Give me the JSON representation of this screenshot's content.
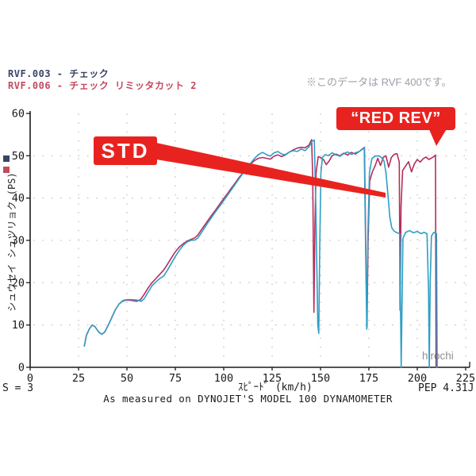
{
  "header": {
    "file_line_1": "RVF.003 - チェック",
    "file_line_2": "RVF.006 - チェック  リミッタカット 2",
    "note": "※このデータは RVF 400です。"
  },
  "annotations": {
    "std_label": "STD",
    "red_rev_label": "“RED REV”",
    "watermark": "hirochi",
    "smoothing": "S = 3",
    "version": "PEP 4.31J",
    "footer": "As measured on DYNOJET'S MODEL 100 DYNAMOMETER"
  },
  "colors": {
    "accent_red": "#e8231f",
    "std_curve": "#2f9ec4",
    "redrev_curve": "#b52d5e",
    "axis": "#1a1a1a",
    "grid": "#c4bcb4",
    "file1_text": "#3a4464",
    "file2_text": "#c5495e",
    "note_text": "#9aa0a8",
    "watermark_text": "#8f8f8f"
  },
  "chart_data": {
    "type": "line",
    "title": "",
    "xlabel": "ｽﾋﾟｰﾄﾞ (km/h)",
    "ylabel": "シュウセイ シュツリョク (PS)",
    "xlim": [
      0,
      225
    ],
    "ylim": [
      0,
      60
    ],
    "x_ticks": [
      0,
      25,
      50,
      75,
      100,
      125,
      150,
      175,
      200,
      225
    ],
    "y_ticks": [
      0,
      10,
      20,
      30,
      40,
      50,
      60
    ],
    "grid": "dotted",
    "legend_position": "none",
    "series": [
      {
        "name": "RVF.006 チェック リミッタカット 2 (RED REV)",
        "color": "#b52d5e",
        "points": [
          [
            28,
            5
          ],
          [
            29,
            7.5
          ],
          [
            30.5,
            9
          ],
          [
            32,
            10
          ],
          [
            33.5,
            9.6
          ],
          [
            35.5,
            8.3
          ],
          [
            37,
            7.8
          ],
          [
            38.5,
            8.3
          ],
          [
            40,
            9.6
          ],
          [
            42,
            11.6
          ],
          [
            44,
            13.6
          ],
          [
            46,
            15
          ],
          [
            48,
            15.7
          ],
          [
            50,
            15.9
          ],
          [
            52.5,
            15.8
          ],
          [
            55,
            15.6
          ],
          [
            57,
            16
          ],
          [
            59,
            17.3
          ],
          [
            61,
            18.8
          ],
          [
            63,
            20
          ],
          [
            65,
            21
          ],
          [
            67,
            22
          ],
          [
            69,
            23
          ],
          [
            71,
            24.4
          ],
          [
            73,
            25.9
          ],
          [
            75,
            27.3
          ],
          [
            77,
            28.4
          ],
          [
            79,
            29.2
          ],
          [
            81,
            29.8
          ],
          [
            83,
            30.2
          ],
          [
            85,
            30.6
          ],
          [
            86.5,
            31.2
          ],
          [
            88,
            32.2
          ],
          [
            90,
            33.5
          ],
          [
            92,
            34.8
          ],
          [
            94,
            36.1
          ],
          [
            96,
            37.3
          ],
          [
            98,
            38.6
          ],
          [
            100,
            39.9
          ],
          [
            102,
            41.1
          ],
          [
            104,
            42.4
          ],
          [
            106,
            43.6
          ],
          [
            108,
            44.9
          ],
          [
            110,
            46
          ],
          [
            112,
            47.1
          ],
          [
            114,
            48.1
          ],
          [
            116,
            48.9
          ],
          [
            118,
            49.4
          ],
          [
            120,
            49.6
          ],
          [
            122,
            49.4
          ],
          [
            124,
            49.2
          ],
          [
            126,
            49.9
          ],
          [
            128,
            50.2
          ],
          [
            130,
            49.8
          ],
          [
            132,
            50.3
          ],
          [
            134,
            50.9
          ],
          [
            136,
            51.4
          ],
          [
            138,
            51.8
          ],
          [
            140,
            52
          ],
          [
            142,
            51.9
          ],
          [
            144,
            52.5
          ],
          [
            145.4,
            53.8
          ],
          [
            146,
            45
          ],
          [
            146.6,
            13
          ],
          [
            147.1,
            33
          ],
          [
            147.7,
            46
          ],
          [
            148.8,
            49.8
          ],
          [
            150,
            49.6
          ],
          [
            151.5,
            49.1
          ],
          [
            153,
            47.9
          ],
          [
            154.5,
            48.8
          ],
          [
            156,
            50
          ],
          [
            158,
            50.4
          ],
          [
            160,
            50
          ],
          [
            162,
            50.6
          ],
          [
            164,
            50.2
          ],
          [
            166,
            50.8
          ],
          [
            168,
            50.4
          ],
          [
            170,
            51
          ],
          [
            171.6,
            51.6
          ],
          [
            172.7,
            52
          ],
          [
            173.4,
            28
          ],
          [
            174,
            9.5
          ],
          [
            174.6,
            30
          ],
          [
            175.4,
            44
          ],
          [
            176.8,
            46.2
          ],
          [
            178.2,
            47.6
          ],
          [
            179.6,
            49.4
          ],
          [
            181,
            47.7
          ],
          [
            182.4,
            49.6
          ],
          [
            183.8,
            50
          ],
          [
            185.2,
            47.3
          ],
          [
            186.6,
            49.6
          ],
          [
            188,
            50.3
          ],
          [
            189.5,
            50.5
          ],
          [
            190.7,
            48.5
          ],
          [
            191.1,
            13.5
          ],
          [
            191.6,
            38
          ],
          [
            192.4,
            46.5
          ],
          [
            194,
            47.6
          ],
          [
            195.5,
            48.6
          ],
          [
            197,
            46.2
          ],
          [
            198.5,
            48.1
          ],
          [
            200,
            49.1
          ],
          [
            201.5,
            48.5
          ],
          [
            203,
            49.3
          ],
          [
            204.5,
            49.7
          ],
          [
            206,
            49.1
          ],
          [
            207.5,
            49.5
          ],
          [
            208.8,
            49.9
          ],
          [
            209.4,
            50.2
          ],
          [
            209.7,
            0
          ]
        ]
      },
      {
        "name": "RVF.003 チェック (STD)",
        "color": "#2f9ec4",
        "points": [
          [
            28,
            5
          ],
          [
            29,
            7.5
          ],
          [
            30.5,
            9
          ],
          [
            32,
            10
          ],
          [
            33.5,
            9.6
          ],
          [
            35.5,
            8.3
          ],
          [
            37,
            7.8
          ],
          [
            38.5,
            8.3
          ],
          [
            40,
            9.6
          ],
          [
            42,
            11.6
          ],
          [
            44,
            13.6
          ],
          [
            46,
            15
          ],
          [
            48,
            15.8
          ],
          [
            50,
            16
          ],
          [
            52.5,
            16
          ],
          [
            55,
            15.9
          ],
          [
            57.5,
            15.6
          ],
          [
            59,
            16.3
          ],
          [
            61,
            17.8
          ],
          [
            63,
            19.3
          ],
          [
            65,
            20.2
          ],
          [
            67,
            21
          ],
          [
            69,
            21.6
          ],
          [
            71,
            23
          ],
          [
            73,
            24.6
          ],
          [
            75,
            26.2
          ],
          [
            77,
            27.6
          ],
          [
            79,
            28.8
          ],
          [
            81,
            29.6
          ],
          [
            83,
            30
          ],
          [
            85,
            30.1
          ],
          [
            86.5,
            30.5
          ],
          [
            88,
            31.5
          ],
          [
            90,
            32.9
          ],
          [
            92,
            34.3
          ],
          [
            94,
            35.6
          ],
          [
            96,
            36.9
          ],
          [
            98,
            38.1
          ],
          [
            100,
            39.4
          ],
          [
            102,
            40.7
          ],
          [
            104,
            42
          ],
          [
            106,
            43.3
          ],
          [
            108,
            44.6
          ],
          [
            110,
            45.9
          ],
          [
            112,
            47.1
          ],
          [
            114,
            48.3
          ],
          [
            116,
            49.4
          ],
          [
            118,
            50.3
          ],
          [
            120,
            50.8
          ],
          [
            122,
            50.3
          ],
          [
            124,
            49.9
          ],
          [
            126,
            50.7
          ],
          [
            128,
            51
          ],
          [
            130,
            50.4
          ],
          [
            132,
            50.2
          ],
          [
            134,
            50.9
          ],
          [
            136,
            51.2
          ],
          [
            138,
            51
          ],
          [
            140,
            51.6
          ],
          [
            142,
            51.2
          ],
          [
            144,
            52.1
          ],
          [
            145.6,
            53.4
          ],
          [
            146.8,
            53.7
          ],
          [
            147.6,
            38
          ],
          [
            148.6,
            10
          ],
          [
            149.1,
            8
          ],
          [
            149.6,
            28
          ],
          [
            150.2,
            46
          ],
          [
            151,
            49.6
          ],
          [
            152.5,
            50.3
          ],
          [
            154,
            50
          ],
          [
            156,
            50.7
          ],
          [
            158,
            50.2
          ],
          [
            160,
            49.9
          ],
          [
            162,
            50.5
          ],
          [
            164,
            50.9
          ],
          [
            166,
            50.3
          ],
          [
            168,
            50.7
          ],
          [
            170,
            51
          ],
          [
            171.6,
            51.5
          ],
          [
            172.6,
            51.9
          ],
          [
            173.3,
            28
          ],
          [
            173.9,
            9
          ],
          [
            174.5,
            32
          ],
          [
            175.3,
            46
          ],
          [
            176.5,
            49.3
          ],
          [
            178,
            49.9
          ],
          [
            180,
            50
          ],
          [
            181.5,
            49.6
          ],
          [
            182.8,
            48.8
          ],
          [
            183.8,
            46
          ],
          [
            184.8,
            41
          ],
          [
            185.8,
            35.5
          ],
          [
            186.8,
            33
          ],
          [
            188,
            32.2
          ],
          [
            189.5,
            31.8
          ],
          [
            191,
            31.6
          ],
          [
            191.4,
            12
          ],
          [
            191.7,
            0
          ],
          [
            192.1,
            14
          ],
          [
            192.6,
            30.5
          ],
          [
            194,
            31.9
          ],
          [
            196,
            32.3
          ],
          [
            198,
            31.8
          ],
          [
            200,
            32.1
          ],
          [
            202,
            31.6
          ],
          [
            203.5,
            31.9
          ],
          [
            205,
            31.6
          ],
          [
            205.8,
            18
          ],
          [
            206.2,
            0
          ],
          [
            206.7,
            20
          ],
          [
            207.3,
            31
          ],
          [
            208.5,
            31.9
          ],
          [
            209.9,
            31.6
          ],
          [
            210.3,
            0
          ]
        ]
      }
    ]
  }
}
